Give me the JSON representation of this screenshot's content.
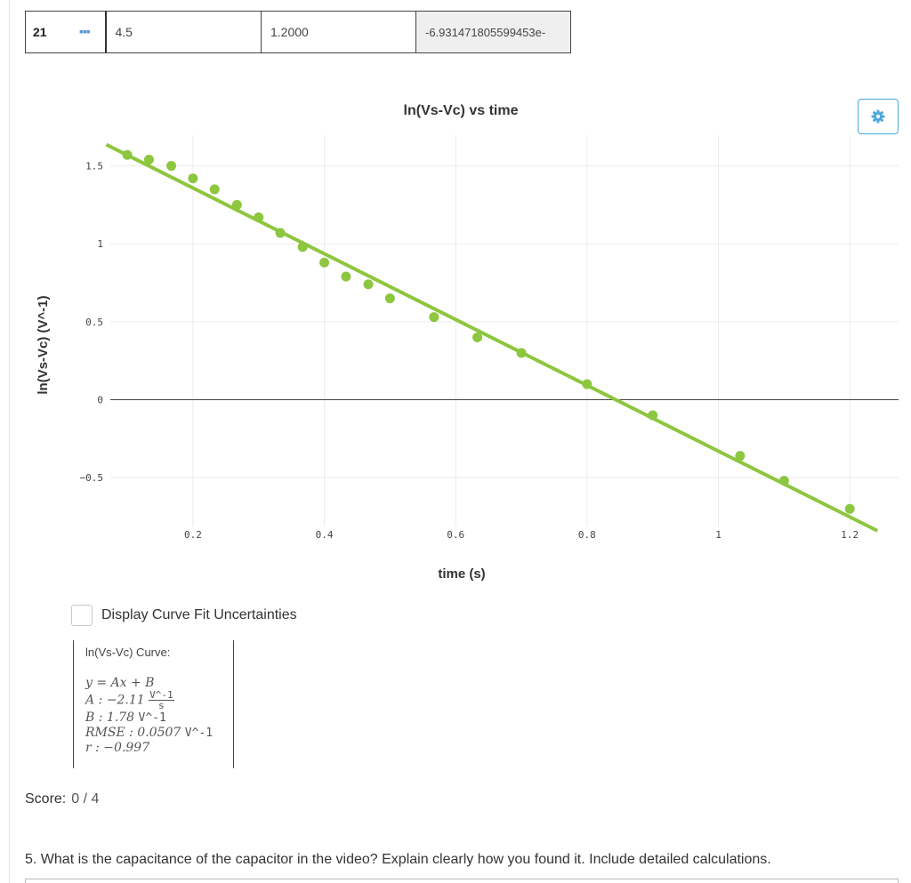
{
  "table_row": {
    "row_number": "21",
    "menu_icon": "ellipsis-icon",
    "col1": "4.5",
    "col2": "1.2000",
    "col3": "-6.931471805599453e-"
  },
  "settings_icon": "gear-icon",
  "chart_data": {
    "type": "scatter",
    "title": "ln(Vs-Vc) vs time",
    "xlabel": "time (s)",
    "ylabel": "ln(Vs-Vc) (V^-1)",
    "xlim": [
      0.02,
      1.25
    ],
    "ylim": [
      -0.83,
      1.66
    ],
    "x_ticks": [
      0.2,
      0.4,
      0.6,
      0.8,
      1,
      1.2
    ],
    "x_tick_labels": [
      "0.2",
      "0.4",
      "0.6",
      "0.8",
      "1",
      "1.2"
    ],
    "y_ticks": [
      1.5,
      1,
      0.5,
      0,
      -0.5
    ],
    "y_tick_labels": [
      "1.5",
      "1",
      "0.5",
      "0",
      "−0.5"
    ],
    "grid": true,
    "series": [
      {
        "color": "#8dc63f",
        "points": [
          [
            0.1,
            1.57
          ],
          [
            0.133,
            1.54
          ],
          [
            0.167,
            1.5
          ],
          [
            0.2,
            1.42
          ],
          [
            0.233,
            1.35
          ],
          [
            0.267,
            1.25
          ],
          [
            0.3,
            1.17
          ],
          [
            0.333,
            1.07
          ],
          [
            0.367,
            0.98
          ],
          [
            0.4,
            0.88
          ],
          [
            0.433,
            0.79
          ],
          [
            0.467,
            0.74
          ],
          [
            0.5,
            0.65
          ],
          [
            0.567,
            0.53
          ],
          [
            0.633,
            0.4
          ],
          [
            0.7,
            0.3
          ],
          [
            0.8,
            0.1
          ],
          [
            0.9,
            -0.1
          ],
          [
            1.033,
            -0.36
          ],
          [
            1.1,
            -0.52
          ],
          [
            1.2,
            -0.7
          ]
        ]
      }
    ],
    "fit_line": {
      "slope": -2.11,
      "intercept": 1.78,
      "color": "#8dc63f"
    }
  },
  "uncertainties_label": "Display Curve Fit Uncertainties",
  "fit": {
    "title": "ln(Vs-Vc) Curve:",
    "equation": "y = Ax + B",
    "a_label": "A : ",
    "a_value": "−2.11",
    "a_unit_num": "V^-1",
    "a_unit_den": "s",
    "b_label": "B : 1.78 ",
    "b_unit": "V^-1",
    "rmse_label": "RMSE : 0.0507 ",
    "rmse_unit": "V^-1",
    "r_label": "r : −0.997"
  },
  "score": {
    "label": "Score:",
    "value": "0 / 4"
  },
  "question": "5. What is the capacitance of the capacitor in the video? Explain clearly how you found it. Include detailed calculations."
}
